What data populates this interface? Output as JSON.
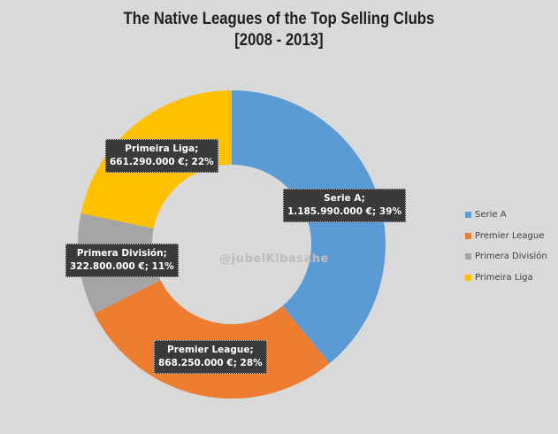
{
  "chart_data": {
    "type": "pie",
    "donut": true,
    "title": "The Native Leagues of the Top Selling Clubs",
    "subtitle": "[2008 - 2013]",
    "slices": [
      {
        "name": "Serie A",
        "value": 1185990000,
        "value_label": "1.185.990.000 €",
        "percent": 39,
        "label": "Serie A;",
        "detail": "1.185.990.000 €; 39%",
        "color": "#5b9bd5"
      },
      {
        "name": "Premier League",
        "value": 868250000,
        "value_label": "868.250.000 €",
        "percent": 28,
        "label": "Premier League;",
        "detail": "868.250.000 €; 28%",
        "color": "#ed7d31"
      },
      {
        "name": "Primera División",
        "value": 322800000,
        "value_label": "322.800.000 €",
        "percent": 11,
        "label": "Primera División;",
        "detail": "322.800.000 €; 11%",
        "color": "#a5a5a5"
      },
      {
        "name": "Primeira Liga",
        "value": 661290000,
        "value_label": "661.290.000 €",
        "percent": 22,
        "label": "Primeira Liga;",
        "detail": "661.290.000 €; 22%",
        "color": "#ffc000"
      }
    ],
    "legend_position": "right"
  },
  "watermark": "@JubelKibasahe"
}
